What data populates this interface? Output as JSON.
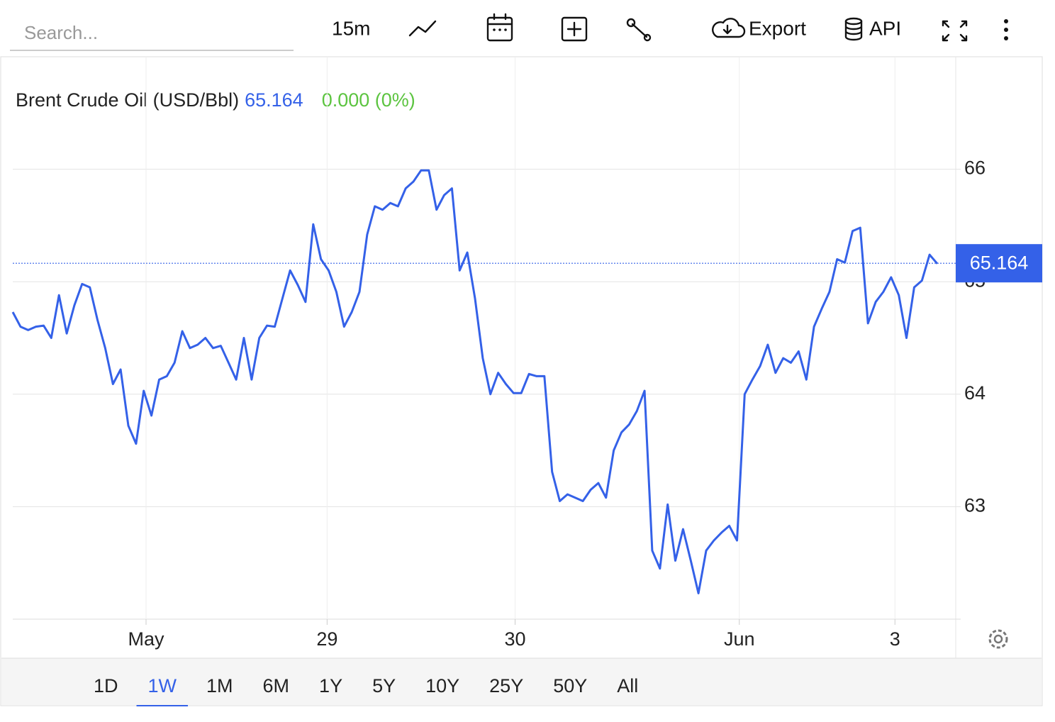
{
  "toolbar": {
    "search_placeholder": "Search...",
    "interval": "15m",
    "export": "Export",
    "api": "API"
  },
  "ranges": [
    "1D",
    "1W",
    "1M",
    "6M",
    "1Y",
    "5Y",
    "10Y",
    "25Y",
    "50Y",
    "All"
  ],
  "active_range": 1,
  "chart_data": {
    "type": "line",
    "title": "Brent Crude Oil (USD/Bbl)",
    "last_price": 65.164,
    "change": "0.000 (0%)",
    "series": [
      {
        "name": "Brent Crude Oil",
        "color": "#3461e8",
        "values": [
          64.73,
          64.6,
          64.57,
          64.6,
          64.61,
          64.5,
          64.88,
          64.54,
          64.79,
          64.98,
          64.95,
          64.66,
          64.41,
          64.09,
          64.22,
          63.72,
          63.56,
          64.03,
          63.81,
          64.13,
          64.16,
          64.28,
          64.56,
          64.41,
          64.44,
          64.5,
          64.41,
          64.43,
          64.28,
          64.13,
          64.5,
          64.13,
          64.5,
          64.61,
          64.6,
          64.85,
          65.1,
          64.97,
          64.82,
          65.51,
          65.2,
          65.1,
          64.91,
          64.6,
          64.73,
          64.91,
          65.42,
          65.67,
          65.64,
          65.7,
          65.67,
          65.83,
          65.89,
          65.99,
          65.99,
          65.64,
          65.77,
          65.83,
          65.1,
          65.26,
          64.85,
          64.32,
          64.0,
          64.19,
          64.09,
          64.01,
          64.01,
          64.18,
          64.16,
          64.16,
          63.31,
          63.05,
          63.11,
          63.08,
          63.05,
          63.15,
          63.21,
          63.08,
          63.5,
          63.66,
          63.73,
          63.85,
          64.03,
          62.61,
          62.45,
          63.02,
          62.52,
          62.8,
          62.52,
          62.23,
          62.61,
          62.7,
          62.77,
          62.83,
          62.7,
          64.0,
          64.13,
          64.25,
          64.44,
          64.19,
          64.32,
          64.28,
          64.38,
          64.13,
          64.6,
          64.76,
          64.91,
          65.2,
          65.17,
          65.45,
          65.48,
          64.63,
          64.82,
          64.91,
          65.04,
          64.88,
          64.5,
          64.95,
          65.01,
          65.24,
          65.16
        ]
      }
    ],
    "ylim": [
      62,
      67
    ],
    "yticks": [
      63,
      64,
      65,
      66
    ],
    "xticks": [
      {
        "value": 17.3,
        "label": "May"
      },
      {
        "value": 40.8,
        "label": "29"
      },
      {
        "value": 65.2,
        "label": "30"
      },
      {
        "value": 94.3,
        "label": "Jun"
      },
      {
        "value": 114.5,
        "label": "3"
      }
    ],
    "grid": true
  }
}
